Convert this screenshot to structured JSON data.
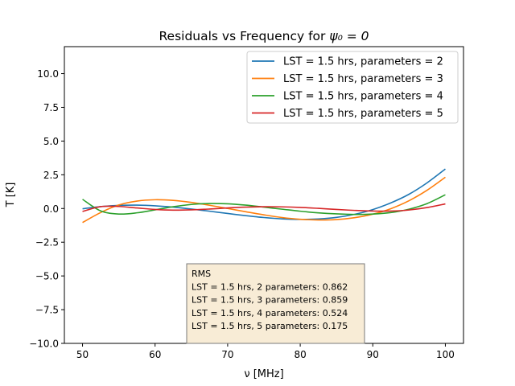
{
  "chart_data": {
    "type": "line",
    "title_prefix": "Residuals vs Frequency for ",
    "title_math": "ψ₀ = 0",
    "xlabel": "ν [MHz]",
    "ylabel": "T [K]",
    "xlim": [
      47.5,
      102.5
    ],
    "ylim": [
      -10,
      12
    ],
    "x_ticks": [
      50,
      60,
      70,
      80,
      90,
      100
    ],
    "y_ticks": [
      -10.0,
      -7.5,
      -5.0,
      -2.5,
      0.0,
      2.5,
      5.0,
      7.5,
      10.0
    ],
    "x_tick_labels": [
      "50",
      "60",
      "70",
      "80",
      "90",
      "100"
    ],
    "y_tick_labels": [
      "−10.0",
      "−7.5",
      "−5.0",
      "−2.5",
      "0.0",
      "2.5",
      "5.0",
      "7.5",
      "10.0"
    ],
    "grid": false,
    "legend_position": "top-right",
    "series": [
      {
        "name": "LST = 1.5 hrs, parameters = 2",
        "color": "#1f77b4",
        "x": [
          50,
          52.5,
          55,
          57.5,
          60,
          62.5,
          65,
          67.5,
          70,
          72.5,
          75,
          77.5,
          80,
          82.5,
          85,
          87.5,
          90,
          92.5,
          95,
          97.5,
          100
        ],
        "y": [
          -0.02,
          0.14,
          0.23,
          0.25,
          0.2,
          0.1,
          -0.04,
          -0.2,
          -0.37,
          -0.53,
          -0.67,
          -0.77,
          -0.81,
          -0.78,
          -0.66,
          -0.43,
          -0.08,
          0.42,
          1.06,
          1.91,
          2.93
        ]
      },
      {
        "name": "LST = 1.5 hrs, parameters = 3",
        "color": "#ff7f0e",
        "x": [
          50,
          52.5,
          55,
          57.5,
          60,
          62.5,
          65,
          67.5,
          70,
          72.5,
          75,
          77.5,
          80,
          82.5,
          85,
          87.5,
          90,
          92.5,
          95,
          97.5,
          100
        ],
        "y": [
          -1.04,
          -0.3,
          0.26,
          0.55,
          0.65,
          0.6,
          0.45,
          0.24,
          0.0,
          -0.24,
          -0.47,
          -0.67,
          -0.8,
          -0.85,
          -0.82,
          -0.68,
          -0.42,
          -0.01,
          0.58,
          1.36,
          2.32
        ]
      },
      {
        "name": "LST = 1.5 hrs, parameters = 4",
        "color": "#2ca02c",
        "x": [
          50,
          52.5,
          55,
          57.5,
          60,
          62.5,
          65,
          67.5,
          70,
          72.5,
          75,
          77.5,
          80,
          82.5,
          85,
          87.5,
          90,
          92.5,
          95,
          97.5,
          100
        ],
        "y": [
          0.68,
          -0.18,
          -0.41,
          -0.32,
          -0.1,
          0.13,
          0.3,
          0.37,
          0.35,
          0.25,
          0.1,
          -0.05,
          -0.2,
          -0.32,
          -0.4,
          -0.44,
          -0.41,
          -0.3,
          -0.05,
          0.37,
          1.02
        ]
      },
      {
        "name": "LST = 1.5 hrs, parameters = 5",
        "color": "#d62728",
        "x": [
          50,
          52.5,
          55,
          57.5,
          60,
          62.5,
          65,
          67.5,
          70,
          72.5,
          75,
          77.5,
          80,
          82.5,
          85,
          87.5,
          90,
          92.5,
          95,
          97.5,
          100
        ],
        "y": [
          -0.22,
          0.14,
          0.15,
          0.04,
          -0.07,
          -0.12,
          -0.1,
          -0.04,
          0.04,
          0.1,
          0.13,
          0.12,
          0.08,
          0.01,
          -0.07,
          -0.14,
          -0.19,
          -0.19,
          -0.11,
          0.07,
          0.34
        ]
      }
    ],
    "annotation": {
      "lines": [
        "RMS",
        "LST = 1.5 hrs, 2 parameters: 0.862",
        "LST = 1.5 hrs, 3 parameters: 0.859",
        "LST = 1.5 hrs, 4 parameters: 0.524",
        "LST = 1.5 hrs, 5 parameters: 0.175"
      ],
      "background": "#f8ecd6",
      "border": "#7a7a7a"
    }
  }
}
